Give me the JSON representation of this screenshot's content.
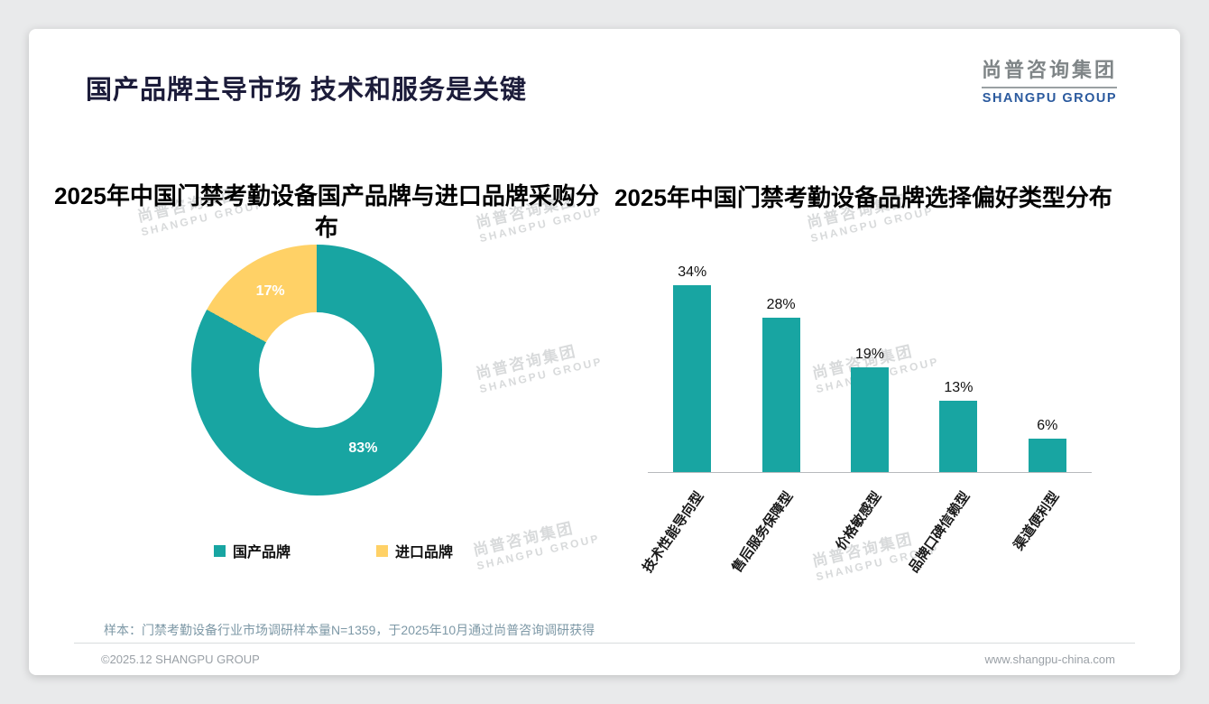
{
  "page": {
    "title": "国产品牌主导市场 技术和服务是关键",
    "logo": {
      "cn": "尚普咨询集团",
      "en": "SHANGPU GROUP"
    },
    "watermark": {
      "cn": "尚普咨询集团",
      "en": "SHANGPU GROUP"
    },
    "footer": {
      "sample_note": "样本：门禁考勤设备行业市场调研样本量N=1359，于2025年10月通过尚普咨询调研获得",
      "copyright": "©2025.12 SHANGPU GROUP",
      "website": "www.shangpu-china.com"
    }
  },
  "colors": {
    "accent_teal": "#18A5A2",
    "accent_yellow": "#FFD166",
    "logo_blue": "#2B5A9E"
  },
  "chart_data": [
    {
      "type": "pie",
      "title": "2025年中国门禁考勤设备国产品牌与进口品牌采购分布",
      "labels": [
        "国产品牌",
        "进口品牌"
      ],
      "values": [
        83,
        17
      ],
      "unit": "%",
      "colors": [
        "#18A5A2",
        "#FFD166"
      ],
      "donut": true,
      "legend_position": "bottom"
    },
    {
      "type": "bar",
      "title": "2025年中国门禁考勤设备品牌选择偏好类型分布",
      "categories": [
        "技术性能导向型",
        "售后服务保障型",
        "价格敏感型",
        "品牌口碑信赖型",
        "渠道便利型"
      ],
      "values": [
        34,
        28,
        19,
        13,
        6
      ],
      "unit": "%",
      "bar_color": "#18A5A2",
      "ylim": [
        0,
        40
      ],
      "grid": false,
      "data_labels": true
    }
  ]
}
